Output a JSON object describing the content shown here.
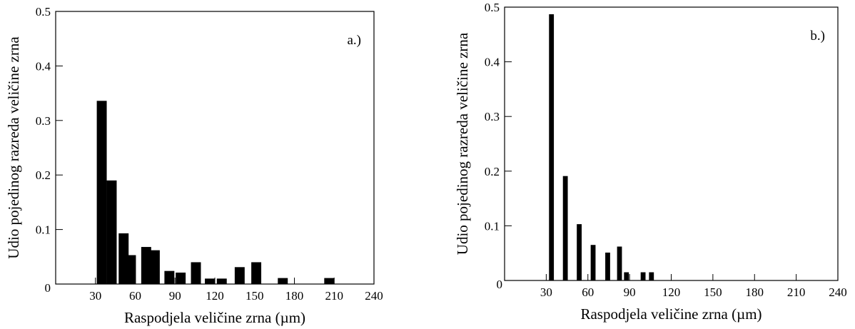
{
  "chart_data": [
    {
      "type": "bar",
      "panel_label": "a.)",
      "xlabel": "Raspodjela veličine zrna (µm)",
      "ylabel": "Udio pojedinog razreda veličine zrna",
      "xlim": [
        0,
        240
      ],
      "ylim": [
        0,
        0.5
      ],
      "xticks": [
        30,
        60,
        90,
        120,
        150,
        180,
        210,
        240
      ],
      "yticks": [
        0,
        0.1,
        0.2,
        0.3,
        0.4,
        0.5
      ],
      "xtick_labels": [
        "30",
        "60",
        "90",
        "120",
        "150",
        "180",
        "210",
        "240"
      ],
      "ytick_labels": [
        "0",
        "0.1",
        "0.2",
        "0.3",
        "0.4",
        "0.5"
      ],
      "bar_width": 7.5,
      "x": [
        31,
        38.5,
        47.5,
        53,
        64.5,
        71,
        82,
        90.5,
        102,
        112.5,
        121.5,
        135,
        147.5,
        167.5,
        202.5
      ],
      "values": [
        0.336,
        0.19,
        0.093,
        0.053,
        0.068,
        0.062,
        0.024,
        0.021,
        0.04,
        0.01,
        0.01,
        0.031,
        0.04,
        0.011,
        0.011
      ],
      "grid": false,
      "legend": "none"
    },
    {
      "type": "bar",
      "panel_label": "b.)",
      "xlabel": "Raspodjela veličine zrna (µm)",
      "ylabel": "Udio pojedinog razreda veličine zrna",
      "xlim": [
        0,
        240
      ],
      "ylim": [
        0,
        0.5
      ],
      "xticks": [
        30,
        60,
        90,
        120,
        150,
        180,
        210,
        240
      ],
      "yticks": [
        0,
        0.1,
        0.2,
        0.3,
        0.4,
        0.5
      ],
      "xtick_labels": [
        "30",
        "60",
        "90",
        "120",
        "150",
        "180",
        "210",
        "240"
      ],
      "ytick_labels": [
        "0",
        "0.1",
        "0.2",
        "0.3",
        "0.4",
        "0.5"
      ],
      "bar_width": 3.5,
      "x": [
        32,
        42,
        52,
        62,
        72.5,
        81,
        86,
        98,
        104
      ],
      "values": [
        0.487,
        0.191,
        0.103,
        0.065,
        0.051,
        0.062,
        0.015,
        0.015,
        0.015
      ],
      "grid": false,
      "legend": "none"
    }
  ]
}
